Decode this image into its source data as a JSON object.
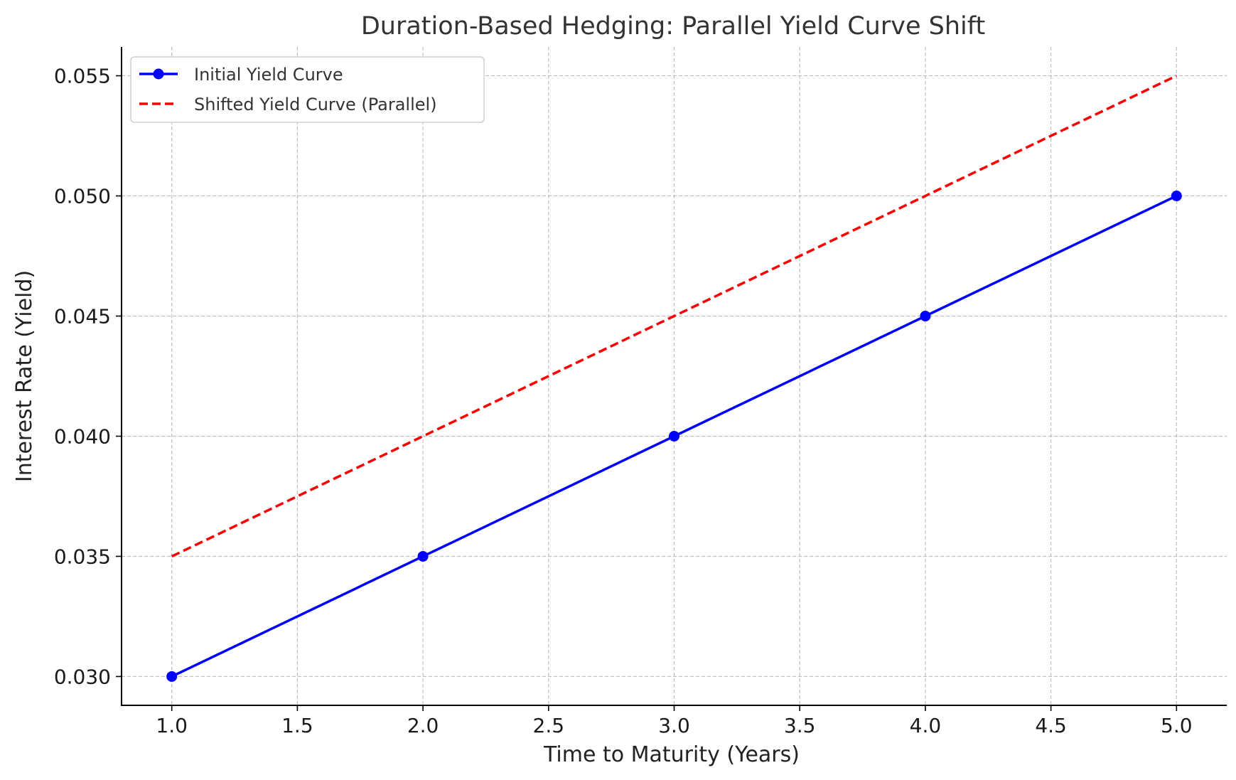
{
  "chart_data": {
    "type": "line",
    "title": "Duration-Based Hedging: Parallel Yield Curve Shift",
    "xlabel": "Time to Maturity (Years)",
    "ylabel": "Interest Rate (Yield)",
    "xlim": [
      0.8,
      5.2
    ],
    "ylim": [
      0.0288,
      0.0562
    ],
    "x_ticks": [
      1.0,
      1.5,
      2.0,
      2.5,
      3.0,
      3.5,
      4.0,
      4.5,
      5.0
    ],
    "x_tick_labels": [
      "1.0",
      "1.5",
      "2.0",
      "2.5",
      "3.0",
      "3.5",
      "4.0",
      "4.5",
      "5.0"
    ],
    "y_ticks": [
      0.03,
      0.035,
      0.04,
      0.045,
      0.05,
      0.055
    ],
    "y_tick_labels": [
      "0.030",
      "0.035",
      "0.040",
      "0.045",
      "0.050",
      "0.055"
    ],
    "grid": true,
    "legend_position": "top-left",
    "series": [
      {
        "name": "Initial Yield Curve",
        "x": [
          1,
          2,
          3,
          4,
          5
        ],
        "y": [
          0.03,
          0.035,
          0.04,
          0.045,
          0.05
        ],
        "color": "#0000ff",
        "line_style": "solid",
        "marker": "circle"
      },
      {
        "name": "Shifted Yield Curve (Parallel)",
        "x": [
          1,
          2,
          3,
          4,
          5
        ],
        "y": [
          0.035,
          0.04,
          0.045,
          0.05,
          0.055
        ],
        "color": "#ff0000",
        "line_style": "dashed",
        "marker": "none"
      }
    ]
  }
}
